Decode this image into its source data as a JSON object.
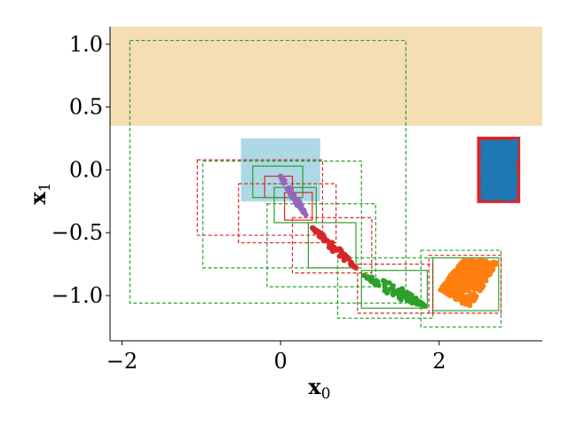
{
  "chart_data": {
    "type": "scatter",
    "title": "",
    "xlabel": "x",
    "xlabel_sub": "0",
    "ylabel": "x",
    "ylabel_sub": "1",
    "xlim": [
      -2.15,
      3.3
    ],
    "ylim": [
      -1.36,
      1.14
    ],
    "xticks": [
      -2,
      0,
      2
    ],
    "yticks": [
      1.0,
      0.5,
      0.0,
      -0.5,
      -1.0
    ],
    "xtick_labels": [
      "−2",
      "0",
      "2"
    ],
    "ytick_labels": [
      "1.0",
      "0.5",
      "0.0",
      "−0.5",
      "−1.0"
    ],
    "grid": false,
    "regions": [
      {
        "kind": "unsafe-band",
        "x": [
          -2.15,
          3.3
        ],
        "y": [
          0.35,
          1.14
        ],
        "color": "#f5deb3"
      },
      {
        "kind": "initial-set",
        "x": [
          -0.5,
          0.5
        ],
        "y": [
          -0.25,
          0.25
        ],
        "color": "#add8e6"
      },
      {
        "kind": "goal-set",
        "x": [
          2.5,
          3.0
        ],
        "y": [
          -0.25,
          0.25
        ],
        "color": "#1f77b4",
        "edge": "#d62728"
      }
    ],
    "reach_boxes": [
      {
        "x": [
          -0.2,
          0.15
        ],
        "y": [
          -0.22,
          -0.05
        ],
        "color": "#d62728",
        "style": "solid"
      },
      {
        "x": [
          -0.35,
          0.28
        ],
        "y": [
          -0.22,
          0.03
        ],
        "color": "#2ca02c",
        "style": "solid"
      },
      {
        "x": [
          0.05,
          0.4
        ],
        "y": [
          -0.4,
          -0.18
        ],
        "color": "#d62728",
        "style": "solid"
      },
      {
        "x": [
          -0.08,
          0.45
        ],
        "y": [
          -0.42,
          -0.14
        ],
        "color": "#2ca02c",
        "style": "solid"
      },
      {
        "x": [
          0.35,
          0.95
        ],
        "y": [
          -0.78,
          -0.42
        ],
        "color": "#2ca02c",
        "style": "solid"
      },
      {
        "x": [
          1.02,
          1.85
        ],
        "y": [
          -1.1,
          -0.8
        ],
        "color": "#2ca02c",
        "style": "solid"
      },
      {
        "x": [
          1.92,
          2.75
        ],
        "y": [
          -1.12,
          -0.7
        ],
        "color": "#2ca02c",
        "style": "solid"
      },
      {
        "x": [
          -1.9,
          1.58
        ],
        "y": [
          -1.06,
          1.03
        ],
        "color": "#2ca02c",
        "style": "dashed"
      },
      {
        "x": [
          -1.05,
          0.53
        ],
        "y": [
          -0.52,
          0.08
        ],
        "color": "#d62728",
        "style": "dashed"
      },
      {
        "x": [
          -0.98,
          1.02
        ],
        "y": [
          -0.78,
          0.07
        ],
        "color": "#2ca02c",
        "style": "dashed"
      },
      {
        "x": [
          -0.53,
          0.7
        ],
        "y": [
          -0.58,
          -0.11
        ],
        "color": "#d62728",
        "style": "dashed"
      },
      {
        "x": [
          -0.17,
          1.2
        ],
        "y": [
          -0.93,
          -0.27
        ],
        "color": "#2ca02c",
        "style": "dashed"
      },
      {
        "x": [
          0.15,
          1.15
        ],
        "y": [
          -0.82,
          -0.38
        ],
        "color": "#d62728",
        "style": "dashed"
      },
      {
        "x": [
          0.72,
          1.92
        ],
        "y": [
          -1.18,
          -0.7
        ],
        "color": "#2ca02c",
        "style": "dashed"
      },
      {
        "x": [
          0.97,
          1.92
        ],
        "y": [
          -1.14,
          -0.75
        ],
        "color": "#d62728",
        "style": "dashed"
      },
      {
        "x": [
          1.77,
          2.78
        ],
        "y": [
          -1.25,
          -0.64
        ],
        "color": "#2ca02c",
        "style": "dashed"
      },
      {
        "x": [
          1.87,
          2.78
        ],
        "y": [
          -1.14,
          -0.68
        ],
        "color": "#d62728",
        "style": "dashed"
      }
    ],
    "series": [
      {
        "color": "#9467bd",
        "shape": "line",
        "start": [
          0.0,
          -0.05
        ],
        "end": [
          0.32,
          -0.36
        ],
        "width": 0.03,
        "count": 60
      },
      {
        "color": "#d62728",
        "shape": "line",
        "start": [
          0.4,
          -0.46
        ],
        "end": [
          0.95,
          -0.78
        ],
        "width": 0.035,
        "count": 70
      },
      {
        "color": "#2ca02c",
        "shape": "line",
        "start": [
          1.05,
          -0.84
        ],
        "end": [
          1.82,
          -1.08
        ],
        "width": 0.05,
        "count": 90
      },
      {
        "color": "#ff7f0e",
        "shape": "quad",
        "corners": [
          [
            2.0,
            -0.95
          ],
          [
            2.75,
            -0.72
          ],
          [
            2.4,
            -1.1
          ],
          [
            2.3,
            -0.72
          ]
        ],
        "count": 420
      },
      {
        "color": "#1f77b4",
        "shape": "rect",
        "x": [
          2.55,
          2.97
        ],
        "y": [
          -0.23,
          0.23
        ],
        "count": 300
      }
    ]
  }
}
